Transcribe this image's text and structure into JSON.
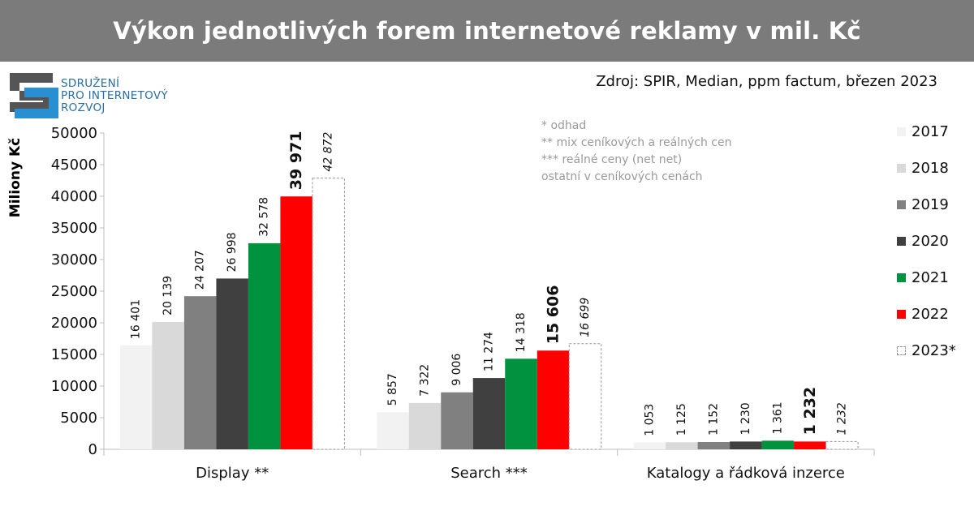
{
  "header": {
    "title": "Výkon jednotlivých forem internetové reklamy v mil. Kč"
  },
  "logo": {
    "lines": [
      "SDRUŽENÍ",
      "PRO INTERNETOVÝ",
      "ROZVOJ"
    ],
    "colors": {
      "dark": "#555555",
      "blue": "#2a8fd0"
    }
  },
  "source": "Zdroj: SPIR, Median, ppm factum, březen 2023",
  "notes": [
    "* odhad",
    "** mix ceníkových a reálných cen",
    "*** reálné ceny (net net)",
    "ostatní v ceníkových cenách"
  ],
  "chart_data": {
    "type": "bar",
    "title": "Výkon jednotlivých forem internetové reklamy v mil. Kč",
    "ylabel": "Miliony Kč",
    "xlabel": "",
    "ylim": [
      0,
      50000
    ],
    "yticks": [
      0,
      5000,
      10000,
      15000,
      20000,
      25000,
      30000,
      35000,
      40000,
      45000,
      50000
    ],
    "legend_position": "right",
    "categories": [
      "Display **",
      "Search ***",
      "Katalogy a řádková inzerce"
    ],
    "series": [
      {
        "name": "2017",
        "color": "#f2f2f2",
        "values": [
          16401,
          5857,
          1053
        ],
        "labels": [
          "16 401",
          "5 857",
          "1 053"
        ]
      },
      {
        "name": "2018",
        "color": "#d9d9d9",
        "values": [
          20139,
          7322,
          1125
        ],
        "labels": [
          "20 139",
          "7 322",
          "1 125"
        ]
      },
      {
        "name": "2019",
        "color": "#808080",
        "values": [
          24207,
          9006,
          1152
        ],
        "labels": [
          "24 207",
          "9 006",
          "1 152"
        ]
      },
      {
        "name": "2020",
        "color": "#404040",
        "values": [
          26998,
          11274,
          1230
        ],
        "labels": [
          "26 998",
          "11 274",
          "1 230"
        ]
      },
      {
        "name": "2021",
        "color": "#00923f",
        "values": [
          32578,
          14318,
          1361
        ],
        "labels": [
          "32 578",
          "14 318",
          "1 361"
        ]
      },
      {
        "name": "2022",
        "color": "#ff0000",
        "values": [
          39971,
          15606,
          1232
        ],
        "labels": [
          "39 971",
          "15 606",
          "1 232"
        ],
        "emphasis": "bold"
      },
      {
        "name": "2023*",
        "color": "#ffffff",
        "values": [
          42872,
          16699,
          1232
        ],
        "labels": [
          "42 872",
          "16 699",
          "1 232"
        ],
        "style": "dashed-italic"
      }
    ]
  }
}
